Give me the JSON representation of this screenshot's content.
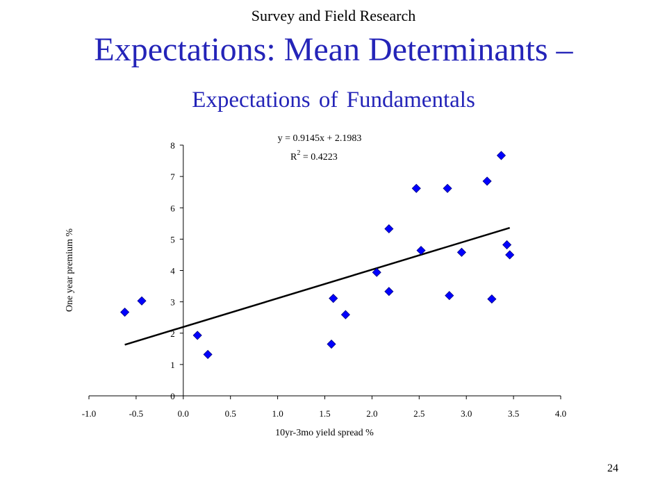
{
  "slide": {
    "supertitle": "Survey and Field Research",
    "title": "Expectations: Mean Determinants –",
    "subtitle": "Expectations of Fundamentals",
    "page_number": "24"
  },
  "chart_data": {
    "type": "scatter",
    "xlabel": "10yr-3mo yield spread %",
    "ylabel": "One year premium %",
    "xlim": [
      -1.0,
      4.0
    ],
    "ylim": [
      0,
      8
    ],
    "x_ticks": [
      "-1.0",
      "-0.5",
      "0.0",
      "0.5",
      "1.0",
      "1.5",
      "2.0",
      "2.5",
      "3.0",
      "3.5",
      "4.0"
    ],
    "y_ticks": [
      "0",
      "1",
      "2",
      "3",
      "4",
      "5",
      "6",
      "7",
      "8"
    ],
    "grid": false,
    "marker_color": "#0000ff",
    "points": [
      {
        "x": -0.62,
        "y": 2.67
      },
      {
        "x": -0.44,
        "y": 3.03
      },
      {
        "x": 0.15,
        "y": 1.93
      },
      {
        "x": 0.26,
        "y": 1.32
      },
      {
        "x": 1.57,
        "y": 1.65
      },
      {
        "x": 1.59,
        "y": 3.11
      },
      {
        "x": 1.72,
        "y": 2.59
      },
      {
        "x": 2.05,
        "y": 3.94
      },
      {
        "x": 2.18,
        "y": 3.33
      },
      {
        "x": 2.18,
        "y": 5.33
      },
      {
        "x": 2.47,
        "y": 6.62
      },
      {
        "x": 2.52,
        "y": 4.64
      },
      {
        "x": 2.8,
        "y": 6.62
      },
      {
        "x": 2.82,
        "y": 3.2
      },
      {
        "x": 2.95,
        "y": 4.58
      },
      {
        "x": 3.22,
        "y": 6.85
      },
      {
        "x": 3.27,
        "y": 3.09
      },
      {
        "x": 3.37,
        "y": 7.67
      },
      {
        "x": 3.43,
        "y": 4.82
      },
      {
        "x": 3.46,
        "y": 4.5
      }
    ],
    "trendline": {
      "equation": "y = 0.9145x + 2.1983",
      "r_squared_prefix": "R",
      "r_squared_exp": "2",
      "r_squared_value": " = 0.4223",
      "slope": 0.9145,
      "intercept": 2.1983,
      "x_range": [
        -0.62,
        3.46
      ]
    }
  }
}
